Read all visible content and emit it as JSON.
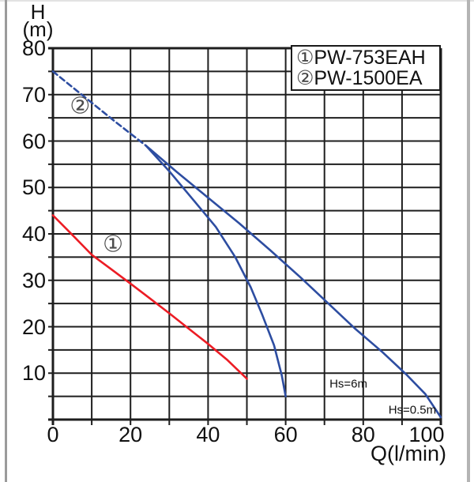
{
  "axis": {
    "y_title_line1": "H",
    "y_title_line2": "(m)",
    "x_title": "Q(l/min)"
  },
  "chart_data": {
    "type": "line",
    "title": "",
    "xlabel": "Q(l/min)",
    "ylabel": "H (m)",
    "xlim": [
      0,
      100
    ],
    "ylim": [
      0,
      80
    ],
    "x_ticks": [
      0,
      20,
      40,
      60,
      80,
      100
    ],
    "y_ticks": [
      80,
      70,
      60,
      50,
      40,
      30,
      20,
      10
    ],
    "x_grid_step": 10,
    "y_grid_step": 5,
    "grid": true,
    "grid_color": "#1e1e1e",
    "legend_position": "top-right",
    "series": [
      {
        "name": "PW-753EAH",
        "curve_id": "1",
        "color": "#ec1c24",
        "style": "solid",
        "points": [
          [
            0,
            44
          ],
          [
            5,
            39.8
          ],
          [
            10,
            35.5
          ],
          [
            15,
            32.4
          ],
          [
            20,
            29.3
          ],
          [
            25,
            26.1
          ],
          [
            30,
            22.9
          ],
          [
            35,
            19.6
          ],
          [
            40,
            16.3
          ],
          [
            45,
            12.8
          ],
          [
            50,
            8.8
          ]
        ]
      },
      {
        "name": "PW-1500EA (dashed section)",
        "curve_id": "2",
        "color": "#2d4da1",
        "style": "dashed",
        "points": [
          [
            0,
            75
          ],
          [
            8,
            69.6
          ],
          [
            16,
            64.2
          ],
          [
            24,
            59
          ]
        ]
      },
      {
        "name": "PW-1500EA Hs=6m",
        "curve_id": "2",
        "color": "#2d4da1",
        "style": "solid",
        "points": [
          [
            24,
            59
          ],
          [
            30,
            53.5
          ],
          [
            36,
            47.5
          ],
          [
            42,
            41.5
          ],
          [
            47,
            35
          ],
          [
            51,
            28.5
          ],
          [
            54,
            22.5
          ],
          [
            57,
            16
          ],
          [
            59,
            9.5
          ],
          [
            60,
            5
          ]
        ]
      },
      {
        "name": "PW-1500EA Hs=0.5m",
        "curve_id": "2",
        "color": "#2d4da1",
        "style": "solid",
        "points": [
          [
            24,
            59
          ],
          [
            32,
            53.3
          ],
          [
            40,
            47.8
          ],
          [
            48,
            42.3
          ],
          [
            56,
            36.5
          ],
          [
            64,
            30.5
          ],
          [
            71,
            25
          ],
          [
            78,
            19.5
          ],
          [
            85,
            14.5
          ],
          [
            91,
            9.8
          ],
          [
            96,
            5.5
          ],
          [
            100,
            0.5
          ]
        ]
      }
    ],
    "annotations": [
      {
        "text": "①",
        "kind": "curve-label",
        "q": 15.5,
        "h": 37.8
      },
      {
        "text": "②",
        "kind": "curve-label",
        "q": 7.0,
        "h": 67.5
      },
      {
        "text": "Hs=6m",
        "kind": "note",
        "q": 71.3,
        "h": 7.6
      },
      {
        "text": "Hs=0.5m",
        "kind": "note",
        "q": 86.5,
        "h": 2.1
      }
    ],
    "legend": {
      "entries": [
        {
          "marker": "①",
          "label": "PW-753EAH"
        },
        {
          "marker": "②",
          "label": "PW-1500EA"
        }
      ]
    }
  }
}
